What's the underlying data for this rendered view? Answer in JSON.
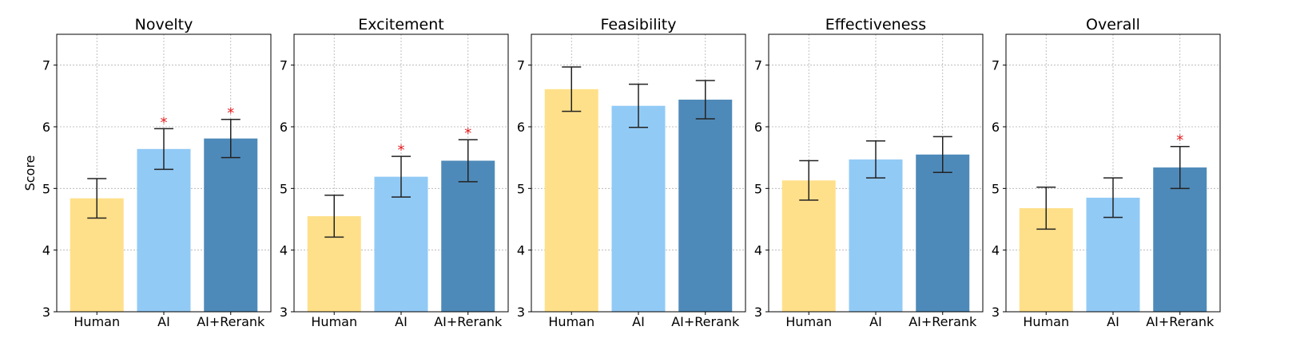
{
  "chart_data": [
    {
      "type": "bar",
      "title": "Novelty",
      "ylabel": "Score",
      "ylim": [
        3,
        7.5
      ],
      "yticks": [
        3,
        4,
        5,
        6,
        7
      ],
      "grid": true,
      "categories": [
        "Human",
        "AI",
        "AI+Rerank"
      ],
      "values": [
        4.84,
        5.64,
        5.81
      ],
      "errors": [
        0.32,
        0.33,
        0.31
      ],
      "significant": [
        false,
        true,
        true
      ]
    },
    {
      "type": "bar",
      "title": "Excitement",
      "ylabel": "",
      "ylim": [
        3,
        7.5
      ],
      "yticks": [
        3,
        4,
        5,
        6,
        7
      ],
      "grid": true,
      "categories": [
        "Human",
        "AI",
        "AI+Rerank"
      ],
      "values": [
        4.55,
        5.19,
        5.45
      ],
      "errors": [
        0.34,
        0.33,
        0.34
      ],
      "significant": [
        false,
        true,
        true
      ]
    },
    {
      "type": "bar",
      "title": "Feasibility",
      "ylabel": "",
      "ylim": [
        3,
        7.5
      ],
      "yticks": [
        3,
        4,
        5,
        6,
        7
      ],
      "grid": true,
      "categories": [
        "Human",
        "AI",
        "AI+Rerank"
      ],
      "values": [
        6.61,
        6.34,
        6.44
      ],
      "errors": [
        0.36,
        0.35,
        0.31
      ],
      "significant": [
        false,
        false,
        false
      ]
    },
    {
      "type": "bar",
      "title": "Effectiveness",
      "ylabel": "",
      "ylim": [
        3,
        7.5
      ],
      "yticks": [
        3,
        4,
        5,
        6,
        7
      ],
      "grid": true,
      "categories": [
        "Human",
        "AI",
        "AI+Rerank"
      ],
      "values": [
        5.13,
        5.47,
        5.55
      ],
      "errors": [
        0.32,
        0.3,
        0.29
      ],
      "significant": [
        false,
        false,
        false
      ]
    },
    {
      "type": "bar",
      "title": "Overall",
      "ylabel": "",
      "ylim": [
        3,
        7.5
      ],
      "yticks": [
        3,
        4,
        5,
        6,
        7
      ],
      "grid": true,
      "categories": [
        "Human",
        "AI",
        "AI+Rerank"
      ],
      "values": [
        4.68,
        4.85,
        5.34
      ],
      "errors": [
        0.34,
        0.32,
        0.34
      ],
      "significant": [
        false,
        false,
        true
      ]
    }
  ],
  "significance_marker": "*",
  "colors": {
    "Human": "#FFE08A",
    "AI": "#92CAF6",
    "AI+Rerank": "#4E8AB9",
    "significance": "#E3191C",
    "error_bar": "#222222"
  }
}
